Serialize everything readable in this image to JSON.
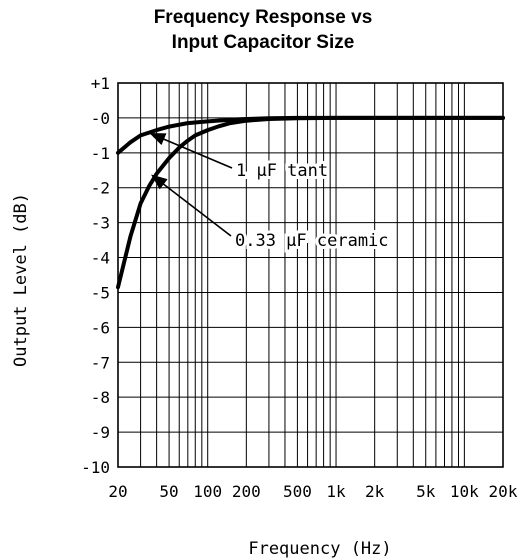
{
  "chart_data": {
    "type": "line",
    "title": [
      "Frequency Response vs",
      "Input Capacitor Size"
    ],
    "xlabel": "Frequency (Hz)",
    "ylabel": "Output Level (dB)",
    "x_scale": "log",
    "xlim": [
      20,
      20000
    ],
    "ylim": [
      -10,
      1
    ],
    "grid": true,
    "x_ticks": [
      20,
      50,
      100,
      200,
      500,
      1000,
      2000,
      5000,
      10000,
      20000
    ],
    "x_tick_labels": [
      "20",
      "50",
      "100",
      "200",
      "500",
      "1k",
      "2k",
      "5k",
      "10k",
      "20k"
    ],
    "y_ticks": [
      1,
      0,
      -1,
      -2,
      -3,
      -4,
      -5,
      -6,
      -7,
      -8,
      -9,
      -10
    ],
    "y_tick_labels": [
      "+1",
      "-0",
      "-1",
      "-2",
      "-3",
      "-4",
      "-5",
      "-6",
      "-7",
      "-8",
      "-9",
      "-10"
    ],
    "series": [
      {
        "name": "1 µF tant",
        "x": [
          20,
          25,
          30,
          40,
          50,
          70,
          100,
          150,
          200,
          300,
          500,
          1000,
          20000
        ],
        "y": [
          -1.0,
          -0.7,
          -0.5,
          -0.35,
          -0.25,
          -0.15,
          -0.1,
          -0.05,
          -0.03,
          -0.01,
          0,
          0,
          0
        ]
      },
      {
        "name": "0.33 µF ceramic",
        "x": [
          20,
          25,
          30,
          35,
          40,
          50,
          60,
          70,
          80,
          100,
          120,
          150,
          200,
          300,
          500,
          1000,
          20000
        ],
        "y": [
          -4.85,
          -3.4,
          -2.45,
          -1.95,
          -1.6,
          -1.15,
          -0.85,
          -0.65,
          -0.5,
          -0.35,
          -0.25,
          -0.15,
          -0.08,
          -0.03,
          -0.01,
          0,
          0
        ]
      }
    ],
    "annotations": [
      {
        "text": "1 µF tant",
        "target_series": 0
      },
      {
        "text": "0.33 µF ceramic",
        "target_series": 1
      }
    ]
  }
}
